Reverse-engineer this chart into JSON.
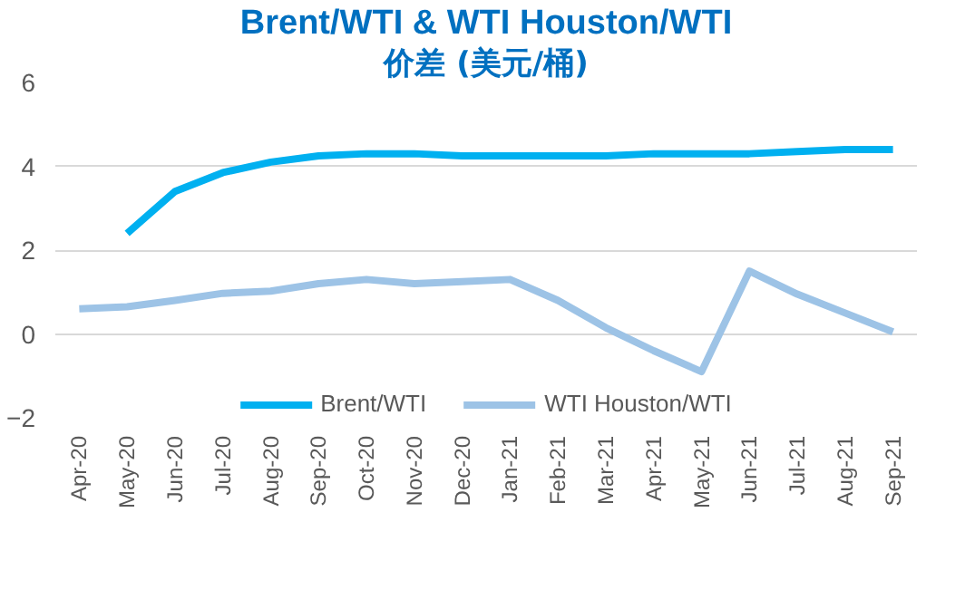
{
  "chart_data": {
    "type": "line",
    "title": "Brent/WTI & WTI Houston/WTI",
    "subtitle": "价差 (美元/桶)",
    "categories": [
      "Apr-20",
      "May-20",
      "Jun-20",
      "Jul-20",
      "Aug-20",
      "Sep-20",
      "Oct-20",
      "Nov-20",
      "Dec-20",
      "Jan-21",
      "Feb-21",
      "Mar-21",
      "Apr-21",
      "May-21",
      "Jun-21",
      "Jul-21",
      "Aug-21",
      "Sep-21"
    ],
    "series": [
      {
        "name": "Brent/WTI",
        "color": "#00b0f0",
        "values": [
          null,
          2.4,
          3.4,
          3.85,
          4.1,
          4.25,
          4.3,
          4.3,
          4.25,
          4.25,
          4.25,
          4.25,
          4.3,
          4.3,
          4.3,
          4.35,
          4.4,
          4.4
        ]
      },
      {
        "name": "WTI Houston/WTI",
        "color": "#9dc3e6",
        "values": [
          0.6,
          0.65,
          0.8,
          0.97,
          1.02,
          1.2,
          1.3,
          1.2,
          1.25,
          1.3,
          0.8,
          0.15,
          -0.4,
          -0.9,
          1.5,
          0.95,
          0.5,
          0.05
        ]
      }
    ],
    "ylim": [
      -2,
      6
    ],
    "yticks": [
      -2,
      0,
      2,
      4,
      6
    ],
    "grid": "y",
    "legend": "bottom",
    "marker": "none",
    "line_style": "solid"
  }
}
